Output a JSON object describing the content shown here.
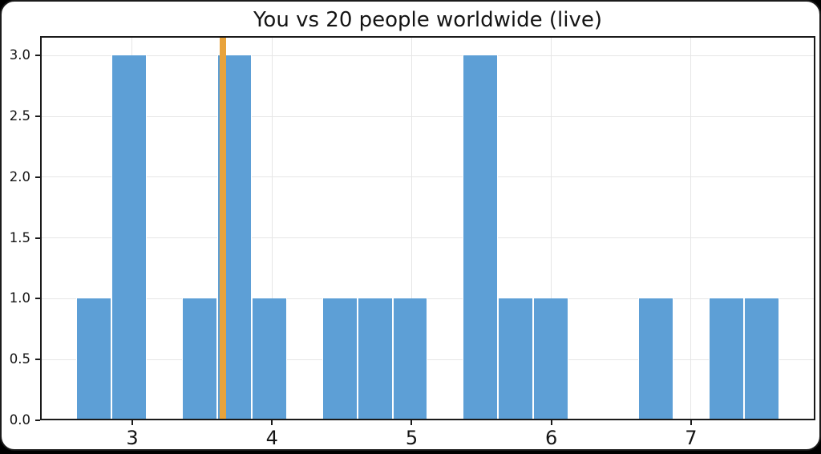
{
  "figure": {
    "page_background": "#000000",
    "card_background": "#ffffff"
  },
  "chart_data": {
    "type": "bar",
    "title": "You vs 20 people worldwide (live)",
    "xlabel": "",
    "ylabel": "",
    "bin_start": 2.6,
    "bin_width": 0.2515,
    "counts": [
      1,
      3,
      0,
      1,
      3,
      1,
      0,
      1,
      1,
      1,
      0,
      3,
      1,
      1,
      0,
      0,
      1,
      0,
      1,
      1
    ],
    "you_value": 3.65,
    "xlim": [
      2.34,
      7.89
    ],
    "ylim": [
      0,
      3.16
    ],
    "x_ticks": [
      "3",
      "4",
      "5",
      "6",
      "7"
    ],
    "x_tick_values": [
      3,
      4,
      5,
      6,
      7
    ],
    "y_ticks": [
      "0.0",
      "0.5",
      "1.0",
      "1.5",
      "2.0",
      "2.5",
      "3.0"
    ],
    "y_tick_values": [
      0,
      0.5,
      1,
      1.5,
      2,
      2.5,
      3
    ],
    "grid": true,
    "bar_color": "#5d9fd6",
    "bar_edge_color": "#ffffff",
    "you_line_color": "#e8a33c",
    "grid_color": "#e6e6e6",
    "axis_color": "#1a1a1a"
  }
}
